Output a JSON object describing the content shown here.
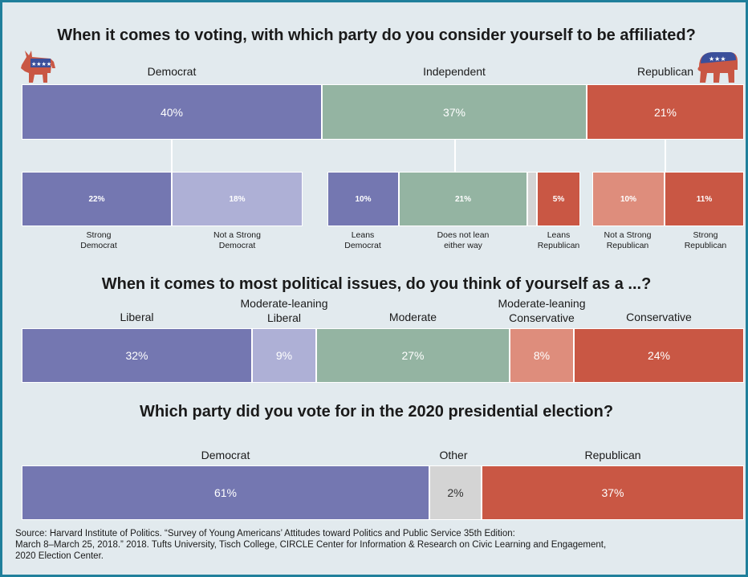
{
  "colors": {
    "democrat": "#7477b1",
    "democrat_light": "#aeb0d6",
    "independent": "#94b4a2",
    "other": "#d4d4d4",
    "republican": "#c95744",
    "republican_light": "#de8d7c",
    "background": "#e2eaee"
  },
  "icons": {
    "left": "democratic-donkey-icon",
    "right": "republican-elephant-icon"
  },
  "chart_data": [
    {
      "type": "bar",
      "orientation": "horizontal-stacked",
      "title": "When it comes to voting, with which party do you consider yourself to be affiliated?",
      "categories": [
        "Democrat",
        "Independent",
        "Republican"
      ],
      "values": [
        40,
        37,
        21
      ],
      "value_labels": [
        "40%",
        "37%",
        "21%"
      ],
      "breakdown": [
        {
          "parent": "Democrat",
          "labels": [
            "Strong Democrat",
            "Not a Strong Democrat"
          ],
          "values": [
            22,
            18
          ],
          "value_labels": [
            "22%",
            "18%"
          ]
        },
        {
          "parent": "Independent",
          "labels": [
            "Leans Democrat",
            "Does not lean either way",
            "",
            "Leans Republican"
          ],
          "values": [
            10,
            21,
            1,
            5
          ],
          "value_labels": [
            "10%",
            "21%",
            "",
            "5%"
          ]
        },
        {
          "parent": "Republican",
          "labels": [
            "Not a Strong Republican",
            "Strong Republican"
          ],
          "values": [
            10,
            11
          ],
          "value_labels": [
            "10%",
            "11%"
          ]
        }
      ]
    },
    {
      "type": "bar",
      "orientation": "horizontal-stacked",
      "title": "When it comes to most political issues, do you think of yourself as a ...?",
      "categories": [
        "Liberal",
        "Moderate-leaning Liberal",
        "Moderate",
        "Moderate-leaning Conservative",
        "Conservative"
      ],
      "values": [
        32,
        9,
        27,
        8,
        24
      ],
      "value_labels": [
        "32%",
        "9%",
        "27%",
        "8%",
        "24%"
      ]
    },
    {
      "type": "bar",
      "orientation": "horizontal-stacked",
      "title": "Which party did you vote for in the 2020 presidential election?",
      "categories": [
        "Democrat",
        "Other",
        "Republican"
      ],
      "values": [
        61,
        2,
        37
      ],
      "value_labels": [
        "61%",
        "2%",
        "37%"
      ]
    }
  ],
  "source": {
    "line1": "Source: Harvard Institute of Politics. “Survey of Young Americans’ Attitudes toward Politics and Public Service 35th Edition:",
    "line2": "March 8–March 25, 2018.” 2018. Tufts University, Tisch College, CIRCLE Center for Information & Research on Civic Learning and Engagement,",
    "line3": "2020 Election Center."
  }
}
